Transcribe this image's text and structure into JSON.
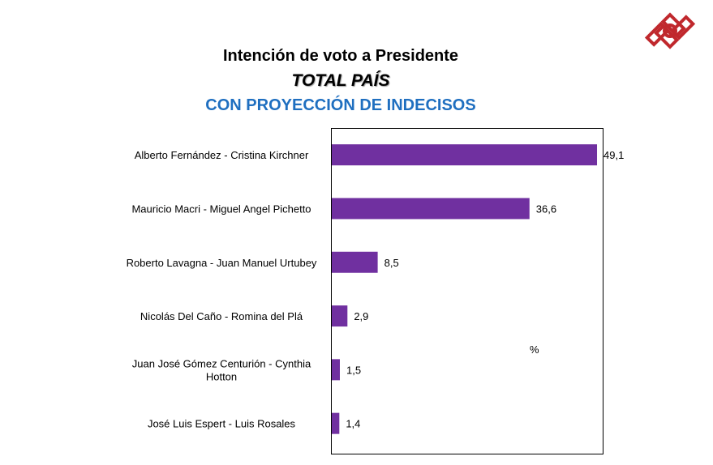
{
  "chart_data": {
    "type": "bar",
    "orientation": "horizontal",
    "title": "Intención de voto a Presidente",
    "subtitle": "TOTAL PAÍS",
    "subtitle2": "CON PROYECCIÓN DE INDECISOS",
    "categories": [
      "Alberto Fernández - Cristina Kirchner",
      "Mauricio Macri - Miguel Angel Pichetto",
      "Roberto Lavagna - Juan Manuel Urtubey",
      "Nicolás Del Caño - Romina del Plá",
      "Juan José Gómez Centurión - Cynthia Hotton",
      "José Luis Espert - Luis Rosales"
    ],
    "values": [
      49.1,
      36.6,
      8.5,
      2.9,
      1.5,
      1.4
    ],
    "value_labels": [
      "49,1",
      "36,6",
      "8,5",
      "2,9",
      "1,5",
      "1,4"
    ],
    "unit_label": "%",
    "xlim": [
      0,
      50.3
    ],
    "bar_color": "#7030a0",
    "logo_color": "#c0282d"
  }
}
